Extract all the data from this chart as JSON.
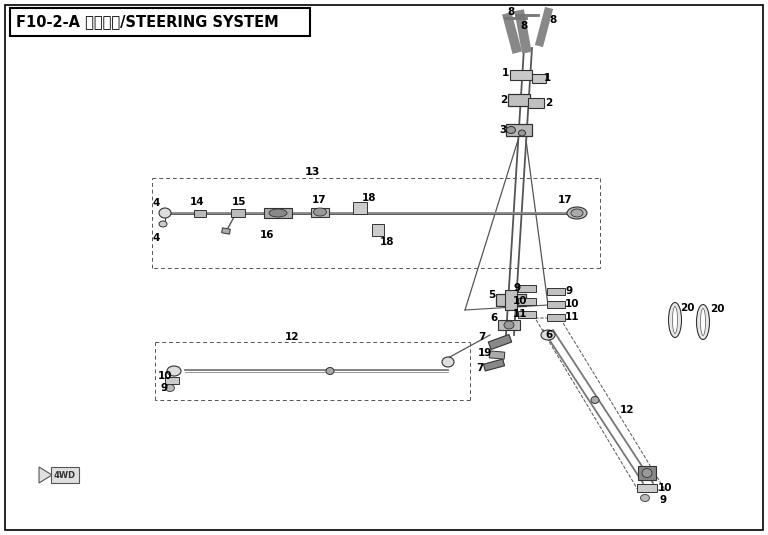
{
  "title": "F10-2-A 转向系统/STEERING SYSTEM",
  "bg_color": "#ffffff",
  "border_color": "#000000",
  "line_color": "#444444",
  "label_color": "#000000",
  "title_fontsize": 10.5,
  "label_fontsize": 7.5,
  "fig_width": 7.68,
  "fig_height": 5.35,
  "dpi": 100
}
